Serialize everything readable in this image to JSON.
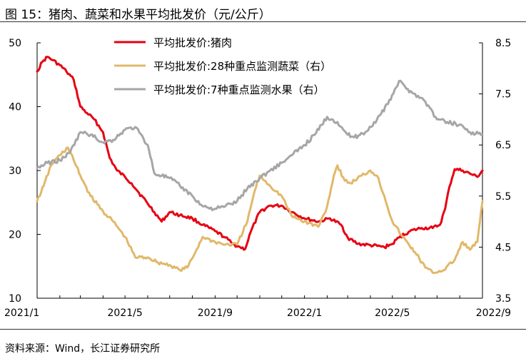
{
  "title": "图 15：猪肉、蔬菜和水果平均批发价（元/公斤）",
  "source": "资料来源：Wind，长江证券研究所",
  "colors": {
    "pork": "#e60012",
    "vegetables": "#e1b86a",
    "fruit": "#a6a6a6"
  },
  "chart_data": {
    "type": "line",
    "title": "图 15：猪肉、蔬菜和水果平均批发价（元/公斤）",
    "x_ticks": [
      "2021/1",
      "2021/5",
      "2021/9",
      "2022/1",
      "2022/5",
      "2022/9"
    ],
    "x_range": [
      "2021-01-01",
      "2022-09-01"
    ],
    "y_left": {
      "range": [
        10,
        50
      ],
      "ticks": [
        "10",
        "20",
        "30",
        "40",
        "50"
      ]
    },
    "y_right": {
      "range": [
        3.5,
        8.5
      ],
      "ticks": [
        "3.5",
        "4.5",
        "5.5",
        "6.5",
        "7.5",
        "8.5"
      ]
    },
    "grid": false,
    "legend_position": "top-center",
    "series": [
      {
        "name": "平均批发价:猪肉",
        "axis": "left",
        "color": "#e60012",
        "points": [
          [
            "2021-01-01",
            45.5
          ],
          [
            "2021-01-08",
            47.0
          ],
          [
            "2021-01-15",
            47.8
          ],
          [
            "2021-01-22",
            47.3
          ],
          [
            "2021-02-01",
            46.5
          ],
          [
            "2021-02-10",
            45.5
          ],
          [
            "2021-02-20",
            44.2
          ],
          [
            "2021-03-01",
            40.0
          ],
          [
            "2021-03-10",
            39.0
          ],
          [
            "2021-03-20",
            38.0
          ],
          [
            "2021-04-01",
            36.0
          ],
          [
            "2021-04-10",
            32.0
          ],
          [
            "2021-04-20",
            30.0
          ],
          [
            "2021-05-01",
            29.0
          ],
          [
            "2021-05-10",
            28.0
          ],
          [
            "2021-05-20",
            26.5
          ],
          [
            "2021-05-31",
            25.0
          ],
          [
            "2021-06-10",
            23.5
          ],
          [
            "2021-06-20",
            22.0
          ],
          [
            "2021-07-01",
            23.5
          ],
          [
            "2021-07-15",
            23.0
          ],
          [
            "2021-08-01",
            22.5
          ],
          [
            "2021-08-15",
            21.5
          ],
          [
            "2021-09-01",
            20.5
          ],
          [
            "2021-09-15",
            19.5
          ],
          [
            "2021-09-25",
            18.5
          ],
          [
            "2021-10-05",
            18.0
          ],
          [
            "2021-10-12",
            17.7
          ],
          [
            "2021-10-20",
            20.5
          ],
          [
            "2021-11-01",
            23.5
          ],
          [
            "2021-11-15",
            24.5
          ],
          [
            "2021-12-01",
            24.5
          ],
          [
            "2021-12-15",
            23.5
          ],
          [
            "2022-01-01",
            22.5
          ],
          [
            "2022-01-20",
            22.0
          ],
          [
            "2022-02-05",
            22.5
          ],
          [
            "2022-02-20",
            21.5
          ],
          [
            "2022-03-01",
            19.5
          ],
          [
            "2022-03-15",
            18.5
          ],
          [
            "2022-04-01",
            18.3
          ],
          [
            "2022-04-20",
            18.0
          ],
          [
            "2022-05-01",
            18.5
          ],
          [
            "2022-05-10",
            19.5
          ],
          [
            "2022-05-25",
            20.5
          ],
          [
            "2022-06-10",
            21.0
          ],
          [
            "2022-06-25",
            21.0
          ],
          [
            "2022-07-05",
            21.5
          ],
          [
            "2022-07-12",
            24.0
          ],
          [
            "2022-07-18",
            27.5
          ],
          [
            "2022-07-25",
            30.2
          ],
          [
            "2022-08-05",
            30.0
          ],
          [
            "2022-08-15",
            29.5
          ],
          [
            "2022-08-25",
            29.0
          ],
          [
            "2022-09-01",
            30.0
          ]
        ]
      },
      {
        "name": "平均批发价:28种重点监测蔬菜（右）",
        "axis": "right",
        "color": "#e1b86a",
        "points": [
          [
            "2021-01-01",
            5.4
          ],
          [
            "2021-01-10",
            5.7
          ],
          [
            "2021-01-20",
            6.1
          ],
          [
            "2021-02-01",
            6.3
          ],
          [
            "2021-02-12",
            6.45
          ],
          [
            "2021-02-20",
            6.2
          ],
          [
            "2021-03-01",
            5.9
          ],
          [
            "2021-03-15",
            5.5
          ],
          [
            "2021-04-01",
            5.2
          ],
          [
            "2021-04-15",
            5.0
          ],
          [
            "2021-05-01",
            4.7
          ],
          [
            "2021-05-15",
            4.3
          ],
          [
            "2021-06-01",
            4.3
          ],
          [
            "2021-06-15",
            4.2
          ],
          [
            "2021-07-01",
            4.15
          ],
          [
            "2021-07-15",
            4.05
          ],
          [
            "2021-07-25",
            4.1
          ],
          [
            "2021-08-05",
            4.4
          ],
          [
            "2021-08-15",
            4.7
          ],
          [
            "2021-09-01",
            4.6
          ],
          [
            "2021-09-15",
            4.55
          ],
          [
            "2021-10-01",
            4.55
          ],
          [
            "2021-10-15",
            5.0
          ],
          [
            "2021-10-25",
            5.6
          ],
          [
            "2021-11-01",
            5.9
          ],
          [
            "2021-11-15",
            5.7
          ],
          [
            "2021-12-01",
            5.5
          ],
          [
            "2021-12-15",
            5.1
          ],
          [
            "2022-01-01",
            5.0
          ],
          [
            "2022-01-20",
            4.9
          ],
          [
            "2022-02-01",
            5.3
          ],
          [
            "2022-02-10",
            5.9
          ],
          [
            "2022-02-15",
            6.1
          ],
          [
            "2022-02-25",
            5.8
          ],
          [
            "2022-03-05",
            5.75
          ],
          [
            "2022-03-20",
            5.9
          ],
          [
            "2022-04-01",
            6.0
          ],
          [
            "2022-04-10",
            5.9
          ],
          [
            "2022-04-20",
            5.5
          ],
          [
            "2022-05-01",
            5.0
          ],
          [
            "2022-05-15",
            4.7
          ],
          [
            "2022-06-01",
            4.4
          ],
          [
            "2022-06-15",
            4.1
          ],
          [
            "2022-06-25",
            4.0
          ],
          [
            "2022-07-10",
            4.05
          ],
          [
            "2022-07-25",
            4.25
          ],
          [
            "2022-08-05",
            4.6
          ],
          [
            "2022-08-15",
            4.45
          ],
          [
            "2022-08-25",
            4.6
          ],
          [
            "2022-09-01",
            5.4
          ]
        ]
      },
      {
        "name": "平均批发价:7种重点监测水果（右）",
        "axis": "right",
        "color": "#a6a6a6",
        "points": [
          [
            "2021-01-01",
            6.05
          ],
          [
            "2021-01-15",
            6.15
          ],
          [
            "2021-02-01",
            6.2
          ],
          [
            "2021-02-15",
            6.35
          ],
          [
            "2021-03-01",
            6.75
          ],
          [
            "2021-03-15",
            6.7
          ],
          [
            "2021-04-01",
            6.55
          ],
          [
            "2021-04-15",
            6.6
          ],
          [
            "2021-05-01",
            6.8
          ],
          [
            "2021-05-15",
            6.85
          ],
          [
            "2021-06-01",
            6.5
          ],
          [
            "2021-06-10",
            5.95
          ],
          [
            "2021-06-20",
            5.9
          ],
          [
            "2021-07-01",
            5.85
          ],
          [
            "2021-07-15",
            5.7
          ],
          [
            "2021-08-01",
            5.5
          ],
          [
            "2021-08-15",
            5.3
          ],
          [
            "2021-09-01",
            5.25
          ],
          [
            "2021-09-15",
            5.3
          ],
          [
            "2021-10-01",
            5.4
          ],
          [
            "2021-10-15",
            5.65
          ],
          [
            "2021-11-01",
            5.85
          ],
          [
            "2021-11-15",
            6.0
          ],
          [
            "2021-12-01",
            6.15
          ],
          [
            "2021-12-15",
            6.3
          ],
          [
            "2022-01-01",
            6.5
          ],
          [
            "2022-01-15",
            6.7
          ],
          [
            "2022-02-01",
            7.05
          ],
          [
            "2022-02-15",
            6.95
          ],
          [
            "2022-03-01",
            6.7
          ],
          [
            "2022-03-10",
            6.65
          ],
          [
            "2022-03-25",
            6.75
          ],
          [
            "2022-04-10",
            7.0
          ],
          [
            "2022-04-25",
            7.3
          ],
          [
            "2022-05-10",
            7.75
          ],
          [
            "2022-05-20",
            7.6
          ],
          [
            "2022-06-01",
            7.5
          ],
          [
            "2022-06-15",
            7.35
          ],
          [
            "2022-07-01",
            7.0
          ],
          [
            "2022-07-15",
            6.95
          ],
          [
            "2022-08-01",
            6.9
          ],
          [
            "2022-08-15",
            6.75
          ],
          [
            "2022-09-01",
            6.7
          ]
        ]
      }
    ]
  }
}
